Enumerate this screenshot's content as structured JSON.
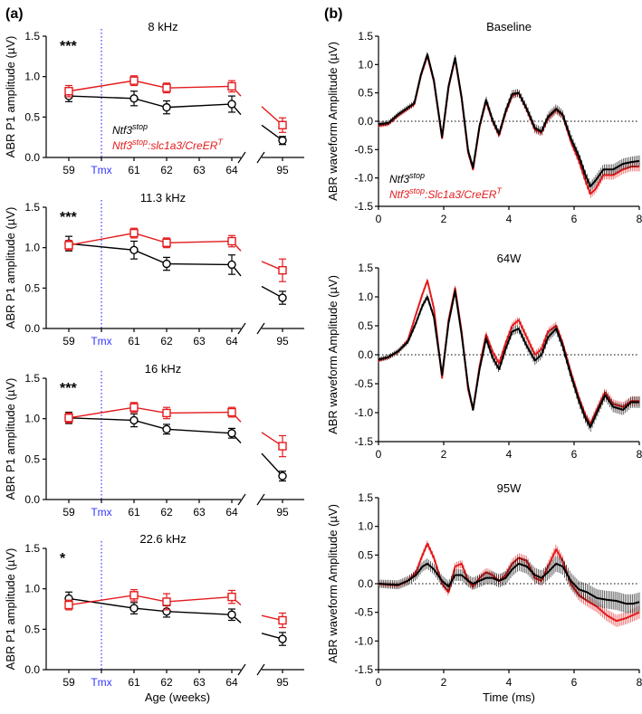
{
  "figure": {
    "panel_a_label": "(a)",
    "panel_b_label": "(b)",
    "colors": {
      "control": "#000000",
      "mutant": "#e31a1c",
      "tmx_line": "#3333ff",
      "zero_line": "#000000"
    }
  },
  "legend": {
    "series1_base": "Ntf3",
    "series1_sup": "stop",
    "series2_base": "Ntf3",
    "series2_sup": "stop",
    "series2_mid": ":slc1a3/CreER",
    "series2_sup2": "T",
    "series2_mid_b": ":Slc1a3/CreER"
  },
  "chart_data": [
    {
      "type": "line",
      "panel": "a",
      "title": "8 kHz",
      "xlabel": "",
      "ylabel": "ABR P1 amplitude (µV)",
      "ylim": [
        0,
        1.5
      ],
      "yticks": [
        "0.0",
        "0.5",
        "1.0",
        "1.5"
      ],
      "x_ticks": [
        "59",
        "Tmx",
        "61",
        "62",
        "63",
        "64",
        "95"
      ],
      "significance": "***",
      "series": [
        {
          "role": "control",
          "x": [
            59,
            61,
            62,
            64,
            95
          ],
          "y": [
            0.76,
            0.73,
            0.62,
            0.66,
            0.21
          ],
          "err": [
            0.07,
            0.09,
            0.08,
            0.1,
            0.05
          ],
          "end_y": 0.53
        },
        {
          "role": "mutant",
          "x": [
            59,
            61,
            62,
            64,
            95
          ],
          "y": [
            0.82,
            0.95,
            0.86,
            0.88,
            0.4
          ],
          "err": [
            0.07,
            0.06,
            0.06,
            0.07,
            0.09
          ],
          "end_y": 0.76
        }
      ]
    },
    {
      "type": "line",
      "panel": "a",
      "title": "11.3 kHz",
      "xlabel": "",
      "ylabel": "ABR P1 amplitude (µV)",
      "ylim": [
        0,
        1.5
      ],
      "yticks": [
        "0.0",
        "0.5",
        "1.0",
        "1.5"
      ],
      "x_ticks": [
        "59",
        "Tmx",
        "61",
        "62",
        "63",
        "64",
        "95"
      ],
      "significance": "***",
      "series": [
        {
          "role": "control",
          "x": [
            59,
            61,
            62,
            64,
            95
          ],
          "y": [
            1.05,
            0.97,
            0.8,
            0.79,
            0.38
          ],
          "err": [
            0.09,
            0.11,
            0.08,
            0.12,
            0.08
          ],
          "end_y": 0.65
        },
        {
          "role": "mutant",
          "x": [
            59,
            61,
            62,
            64,
            95
          ],
          "y": [
            1.03,
            1.18,
            1.06,
            1.08,
            0.72
          ],
          "err": [
            0.06,
            0.06,
            0.06,
            0.07,
            0.14
          ],
          "end_y": 0.96
        }
      ]
    },
    {
      "type": "line",
      "panel": "a",
      "title": "16 kHz",
      "xlabel": "",
      "ylabel": "ABR P1 amplitude (µV)",
      "ylim": [
        0,
        1.5
      ],
      "yticks": [
        "0.0",
        "0.5",
        "1.0",
        "1.5"
      ],
      "x_ticks": [
        "59",
        "Tmx",
        "61",
        "62",
        "63",
        "64",
        "95"
      ],
      "significance": "***",
      "series": [
        {
          "role": "control",
          "x": [
            59,
            61,
            62,
            64,
            95
          ],
          "y": [
            1.01,
            0.98,
            0.87,
            0.82,
            0.29
          ],
          "err": [
            0.07,
            0.08,
            0.06,
            0.06,
            0.06
          ],
          "end_y": 0.7
        },
        {
          "role": "mutant",
          "x": [
            59,
            61,
            62,
            64,
            95
          ],
          "y": [
            1.01,
            1.14,
            1.07,
            1.08,
            0.66
          ],
          "err": [
            0.06,
            0.06,
            0.07,
            0.06,
            0.13
          ],
          "end_y": 0.96
        }
      ]
    },
    {
      "type": "line",
      "panel": "a",
      "title": "22.6 kHz",
      "xlabel": "Age (weeks)",
      "ylabel": "ABR P1 amplitude (µV)",
      "ylim": [
        0,
        1.5
      ],
      "yticks": [
        "0.0",
        "0.5",
        "1.0",
        "1.5"
      ],
      "x_ticks": [
        "59",
        "Tmx",
        "61",
        "62",
        "63",
        "64",
        "95"
      ],
      "significance": "*",
      "series": [
        {
          "role": "control",
          "x": [
            59,
            61,
            62,
            64,
            95
          ],
          "y": [
            0.88,
            0.76,
            0.72,
            0.68,
            0.38
          ],
          "err": [
            0.08,
            0.07,
            0.07,
            0.07,
            0.08
          ],
          "end_y": 0.58
        },
        {
          "role": "mutant",
          "x": [
            59,
            61,
            62,
            64,
            95
          ],
          "y": [
            0.8,
            0.92,
            0.84,
            0.9,
            0.61
          ],
          "err": [
            0.06,
            0.07,
            0.1,
            0.08,
            0.09
          ],
          "end_y": 0.8
        }
      ]
    },
    {
      "type": "line",
      "panel": "b",
      "title": "Baseline",
      "xlabel": "",
      "ylabel": "ABR waveform Amplitude (µV)",
      "xlim": [
        0,
        8
      ],
      "ylim": [
        -1.5,
        1.5
      ],
      "xticks": [
        "0",
        "2",
        "4",
        "6",
        "8"
      ],
      "yticks": [
        "-1.5",
        "-1.0",
        "-0.5",
        "0.0",
        "0.5",
        "1.0",
        "1.5"
      ],
      "series": [
        {
          "role": "mutant",
          "x": [
            0,
            0.3,
            0.6,
            0.85,
            1.1,
            1.3,
            1.5,
            1.7,
            1.95,
            2.15,
            2.35,
            2.55,
            2.75,
            2.9,
            3.1,
            3.3,
            3.5,
            3.7,
            3.9,
            4.1,
            4.3,
            4.55,
            4.8,
            5.0,
            5.2,
            5.45,
            5.65,
            5.9,
            6.15,
            6.35,
            6.5,
            6.65,
            6.9,
            7.2,
            7.5,
            7.75,
            8.0
          ],
          "y": [
            -0.08,
            -0.05,
            0.1,
            0.2,
            0.3,
            0.8,
            1.15,
            0.7,
            -0.3,
            0.6,
            1.1,
            0.4,
            -0.55,
            -0.85,
            -0.1,
            0.35,
            0.0,
            -0.25,
            0.15,
            0.45,
            0.5,
            0.2,
            -0.15,
            -0.2,
            0.05,
            0.2,
            0.1,
            -0.35,
            -0.7,
            -1.05,
            -1.28,
            -1.2,
            -0.95,
            -0.95,
            -0.85,
            -0.8,
            -0.8
          ],
          "err": 0.06
        },
        {
          "role": "control",
          "x": [
            0,
            0.3,
            0.6,
            0.85,
            1.1,
            1.3,
            1.5,
            1.7,
            1.95,
            2.15,
            2.35,
            2.55,
            2.75,
            2.9,
            3.1,
            3.3,
            3.5,
            3.7,
            3.9,
            4.1,
            4.3,
            4.55,
            4.8,
            5.0,
            5.2,
            5.45,
            5.65,
            5.9,
            6.15,
            6.35,
            6.5,
            6.65,
            6.9,
            7.2,
            7.5,
            7.75,
            8.0
          ],
          "y": [
            -0.05,
            -0.03,
            0.12,
            0.22,
            0.32,
            0.82,
            1.18,
            0.72,
            -0.28,
            0.62,
            1.12,
            0.42,
            -0.52,
            -0.82,
            -0.08,
            0.38,
            0.02,
            -0.22,
            0.18,
            0.48,
            0.5,
            0.22,
            -0.12,
            -0.18,
            0.08,
            0.22,
            0.12,
            -0.3,
            -0.62,
            -0.95,
            -1.15,
            -1.05,
            -0.85,
            -0.85,
            -0.75,
            -0.72,
            -0.7
          ],
          "err": 0.07
        }
      ]
    },
    {
      "type": "line",
      "panel": "b",
      "title": "64W",
      "xlabel": "",
      "ylabel": "ABR waveform Amplitude (µV)",
      "xlim": [
        0,
        8
      ],
      "ylim": [
        -1.5,
        1.5
      ],
      "xticks": [
        "0",
        "2",
        "4",
        "6",
        "8"
      ],
      "yticks": [
        "-1.5",
        "-1.0",
        "-0.5",
        "0.0",
        "0.5",
        "1.0",
        "1.5"
      ],
      "series": [
        {
          "role": "mutant",
          "x": [
            0,
            0.3,
            0.6,
            0.9,
            1.15,
            1.35,
            1.5,
            1.7,
            1.95,
            2.15,
            2.35,
            2.55,
            2.75,
            2.9,
            3.1,
            3.3,
            3.5,
            3.7,
            3.9,
            4.1,
            4.3,
            4.55,
            4.8,
            5.0,
            5.2,
            5.45,
            5.65,
            5.9,
            6.15,
            6.35,
            6.5,
            6.7,
            6.95,
            7.2,
            7.5,
            7.75,
            8.0
          ],
          "y": [
            -0.1,
            -0.05,
            0.05,
            0.25,
            0.7,
            1.05,
            1.28,
            0.8,
            -0.4,
            0.6,
            1.15,
            0.4,
            -0.6,
            -0.95,
            -0.2,
            0.35,
            0.05,
            -0.15,
            0.2,
            0.5,
            0.6,
            0.3,
            0.0,
            0.1,
            0.4,
            0.5,
            0.2,
            -0.3,
            -0.75,
            -1.05,
            -1.2,
            -0.95,
            -0.65,
            -0.85,
            -0.9,
            -0.8,
            -0.8
          ],
          "err": 0.06
        },
        {
          "role": "control",
          "x": [
            0,
            0.3,
            0.6,
            0.9,
            1.15,
            1.35,
            1.5,
            1.7,
            1.95,
            2.15,
            2.35,
            2.55,
            2.75,
            2.9,
            3.1,
            3.3,
            3.5,
            3.7,
            3.9,
            4.1,
            4.3,
            4.55,
            4.8,
            5.0,
            5.2,
            5.45,
            5.65,
            5.9,
            6.15,
            6.35,
            6.5,
            6.7,
            6.95,
            7.2,
            7.5,
            7.75,
            8.0
          ],
          "y": [
            -0.08,
            -0.04,
            0.06,
            0.22,
            0.55,
            0.85,
            1.0,
            0.65,
            -0.35,
            0.55,
            1.1,
            0.35,
            -0.55,
            -0.95,
            -0.25,
            0.28,
            -0.05,
            -0.25,
            0.1,
            0.4,
            0.45,
            0.15,
            -0.1,
            0.0,
            0.3,
            0.45,
            0.15,
            -0.35,
            -0.8,
            -1.1,
            -1.25,
            -1.0,
            -0.7,
            -0.9,
            -0.95,
            -0.82,
            -0.82
          ],
          "err": 0.07
        }
      ]
    },
    {
      "type": "line",
      "panel": "b",
      "title": "95W",
      "xlabel": "Time (ms)",
      "ylabel": "ABR waveform Amplitude (µV)",
      "xlim": [
        0,
        8
      ],
      "ylim": [
        -1.5,
        1.5
      ],
      "xticks": [
        "0",
        "2",
        "4",
        "6",
        "8"
      ],
      "yticks": [
        "-1.5",
        "-1.0",
        "-0.5",
        "0.0",
        "0.5",
        "1.0",
        "1.5"
      ],
      "series": [
        {
          "role": "mutant",
          "x": [
            0,
            0.3,
            0.6,
            0.9,
            1.15,
            1.35,
            1.5,
            1.7,
            1.95,
            2.15,
            2.35,
            2.55,
            2.75,
            2.9,
            3.1,
            3.3,
            3.5,
            3.7,
            3.9,
            4.1,
            4.3,
            4.55,
            4.8,
            5.0,
            5.2,
            5.45,
            5.65,
            5.9,
            6.15,
            6.4,
            6.7,
            7.0,
            7.3,
            7.6,
            7.8,
            8.0
          ],
          "y": [
            0.0,
            -0.02,
            -0.03,
            0.05,
            0.2,
            0.5,
            0.7,
            0.45,
            0.0,
            -0.15,
            0.3,
            0.35,
            0.05,
            -0.05,
            0.1,
            0.2,
            0.15,
            0.05,
            0.15,
            0.35,
            0.45,
            0.4,
            0.1,
            0.05,
            0.3,
            0.6,
            0.4,
            0.0,
            -0.2,
            -0.3,
            -0.4,
            -0.55,
            -0.65,
            -0.6,
            -0.55,
            -0.5
          ],
          "err": 0.08
        },
        {
          "role": "control",
          "x": [
            0,
            0.3,
            0.6,
            0.9,
            1.15,
            1.35,
            1.5,
            1.7,
            1.95,
            2.15,
            2.35,
            2.55,
            2.75,
            2.9,
            3.1,
            3.3,
            3.5,
            3.7,
            3.9,
            4.1,
            4.3,
            4.55,
            4.8,
            5.0,
            5.2,
            5.45,
            5.65,
            5.9,
            6.15,
            6.4,
            6.7,
            7.0,
            7.3,
            7.6,
            7.8,
            8.0
          ],
          "y": [
            0.0,
            -0.01,
            -0.02,
            0.05,
            0.15,
            0.3,
            0.35,
            0.25,
            0.05,
            -0.05,
            0.15,
            0.15,
            0.05,
            0.0,
            0.05,
            0.1,
            0.1,
            0.05,
            0.1,
            0.25,
            0.35,
            0.3,
            0.15,
            0.1,
            0.2,
            0.35,
            0.3,
            0.05,
            -0.1,
            -0.15,
            -0.25,
            -0.28,
            -0.3,
            -0.35,
            -0.35,
            -0.32
          ],
          "err": 0.12
        }
      ]
    }
  ]
}
